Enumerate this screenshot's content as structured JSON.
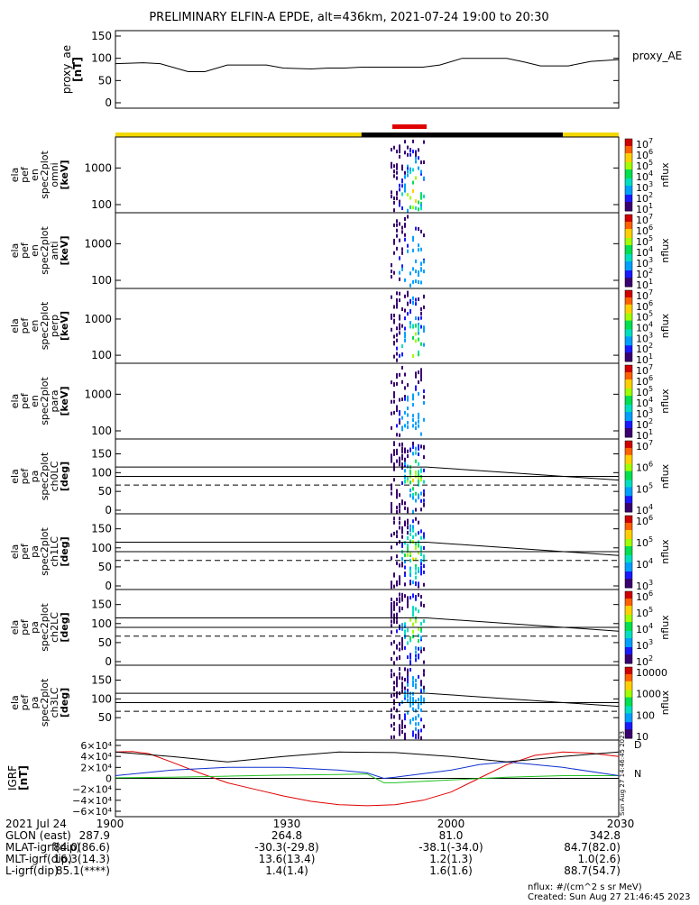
{
  "title": "PRELIMINARY ELFIN-A EPDE, alt=436km, 2021-07-24 19:00 to 20:30",
  "colors": {
    "yellow": "#f2d800",
    "black": "#000000",
    "red": "#e00000",
    "blue": "#1030d0",
    "green": "#20c020"
  },
  "chart_data": [
    {
      "type": "line",
      "panel": "proxy_ae",
      "ylabel_lines": [
        "proxy_ae",
        "[nT]"
      ],
      "legend": "proxy_AE",
      "y_ticks": [
        "150",
        "100",
        "50",
        "0"
      ],
      "ylim": [
        0,
        150
      ],
      "x_minutes": [
        0,
        5,
        8,
        13,
        16,
        20,
        27,
        30,
        35,
        38,
        41,
        44,
        46,
        50,
        55,
        58,
        62,
        66,
        70,
        73,
        76,
        81,
        85,
        90
      ],
      "values": [
        88,
        90,
        88,
        70,
        70,
        85,
        85,
        78,
        76,
        78,
        78,
        80,
        80,
        80,
        80,
        85,
        100,
        100,
        100,
        92,
        83,
        83,
        93,
        97
      ]
    },
    {
      "type": "heatmap",
      "panel": "omni",
      "ylabel_lines": [
        "ela",
        "pef",
        "en",
        "spec2plot",
        "omni",
        "[keV]"
      ],
      "y_ticks": [
        "1000",
        "100"
      ],
      "colorbar_ticks": [
        "10^7",
        "10^6",
        "10^5",
        "10^4",
        "10^3",
        "10^2",
        "10^1"
      ],
      "colorbar_label": "nflux"
    },
    {
      "type": "heatmap",
      "panel": "anti",
      "ylabel_lines": [
        "ela",
        "pef",
        "en",
        "spec2plot",
        "anti",
        "[keV]"
      ],
      "y_ticks": [
        "1000",
        "100"
      ],
      "colorbar_ticks": [
        "10^7",
        "10^6",
        "10^5",
        "10^4",
        "10^3",
        "10^2",
        "10^1"
      ],
      "colorbar_label": "nflux"
    },
    {
      "type": "heatmap",
      "panel": "perp",
      "ylabel_lines": [
        "ela",
        "pef",
        "en",
        "spec2plot",
        "perp",
        "[keV]"
      ],
      "y_ticks": [
        "1000",
        "100"
      ],
      "colorbar_ticks": [
        "10^7",
        "10^6",
        "10^5",
        "10^4",
        "10^3",
        "10^2",
        "10^1"
      ],
      "colorbar_label": "nflux"
    },
    {
      "type": "heatmap",
      "panel": "para",
      "ylabel_lines": [
        "ela",
        "pef",
        "en",
        "spec2plot",
        "para",
        "[keV]"
      ],
      "y_ticks": [
        "1000",
        "100"
      ],
      "colorbar_ticks": [
        "10^7",
        "10^6",
        "10^5",
        "10^4",
        "10^3",
        "10^2",
        "10^1"
      ],
      "colorbar_label": "nflux"
    },
    {
      "type": "heatmap",
      "panel": "ch0LC",
      "ylabel_lines": [
        "ela",
        "pef",
        "pa",
        "spec2plot",
        "ch0LC",
        "[deg]"
      ],
      "y_ticks": [
        "150",
        "100",
        "50",
        "0"
      ],
      "colorbar_ticks": [
        "10^7",
        "10^6",
        "10^5",
        "10^4"
      ],
      "colorbar_label": "nflux"
    },
    {
      "type": "heatmap",
      "panel": "ch1LC",
      "ylabel_lines": [
        "ela",
        "pef",
        "pa",
        "spec2plot",
        "ch1LC",
        "[deg]"
      ],
      "y_ticks": [
        "150",
        "100",
        "50",
        "0"
      ],
      "colorbar_ticks": [
        "10^6",
        "10^5",
        "10^4",
        "10^3"
      ],
      "colorbar_label": "nflux"
    },
    {
      "type": "heatmap",
      "panel": "ch2LC",
      "ylabel_lines": [
        "ela",
        "pef",
        "pa",
        "spec2plot",
        "ch2LC",
        "[deg]"
      ],
      "y_ticks": [
        "150",
        "100",
        "50",
        "0"
      ],
      "colorbar_ticks": [
        "10^6",
        "10^5",
        "10^4",
        "10^3",
        "10^2"
      ],
      "colorbar_label": "nflux"
    },
    {
      "type": "heatmap",
      "panel": "ch3LC",
      "ylabel_lines": [
        "ela",
        "pef",
        "pa",
        "spec2plot",
        "ch3LC",
        "[deg]"
      ],
      "y_ticks": [
        "150",
        "100",
        "50"
      ],
      "colorbar_ticks": [
        "10000",
        "1000",
        "100",
        "10"
      ],
      "colorbar_label": "nflux"
    },
    {
      "type": "line",
      "panel": "IGRF",
      "ylabel_lines": [
        "IGRF",
        "[nT]"
      ],
      "y_ticks": [
        "6×10⁴",
        "4×10⁴",
        "2×10⁴",
        "0",
        "−2×10⁴",
        "−4×10⁴",
        "−6×10⁴"
      ],
      "ylim": [
        -60000,
        60000
      ],
      "legend_labels": [
        "D",
        "N"
      ],
      "series": [
        {
          "name": "D",
          "color": "#e00000",
          "x_minutes": [
            0,
            3,
            6,
            10,
            15,
            20,
            25,
            30,
            35,
            40,
            45,
            50,
            55,
            60,
            65,
            70,
            75,
            80,
            85,
            90
          ],
          "values": [
            48000,
            49000,
            45000,
            30000,
            10000,
            -8000,
            -20000,
            -32000,
            -42000,
            -48000,
            -50000,
            -48000,
            -40000,
            -25000,
            0,
            25000,
            42000,
            48000,
            46000,
            40000
          ]
        },
        {
          "name": "N",
          "color": "#20c020",
          "x_minutes": [
            0,
            10,
            20,
            30,
            40,
            45,
            48,
            50,
            60,
            70,
            80,
            90
          ],
          "values": [
            1000,
            2000,
            4000,
            6000,
            7000,
            8000,
            -8000,
            -8000,
            -3000,
            2000,
            5000,
            5000
          ]
        },
        {
          "name": "",
          "color": "#1030d0",
          "x_minutes": [
            0,
            10,
            20,
            30,
            40,
            45,
            48,
            50,
            60,
            65,
            70,
            80,
            90
          ],
          "values": [
            5000,
            15000,
            20000,
            20000,
            15000,
            10000,
            0,
            2000,
            15000,
            25000,
            30000,
            20000,
            5000
          ]
        },
        {
          "name": "",
          "color": "#000000",
          "x_minutes": [
            0,
            10,
            20,
            30,
            40,
            50,
            60,
            70,
            80,
            90
          ],
          "values": [
            48000,
            40000,
            30000,
            40000,
            48000,
            47000,
            40000,
            30000,
            40000,
            48000
          ]
        }
      ]
    }
  ],
  "footer": {
    "row_labels": [
      "2021 Jul 24",
      "GLON (east)",
      "MLAT-igrf(dip)",
      "MLT-igrf(dip)",
      "L-igrf(dip)"
    ],
    "col0": [
      "1900",
      "287.9",
      "84.0(86.6)",
      "16.3(14.3)",
      "85.1(****)"
    ],
    "col1": [
      "1930",
      "264.8",
      "-30.3(-29.8)",
      "13.6(13.4)",
      "1.4(1.4)"
    ],
    "col2": [
      "2000",
      "81.0",
      "-38.1(-34.0)",
      "1.2(1.3)",
      "1.6(1.6)"
    ],
    "col3": [
      "2030",
      "342.8",
      "84.7(82.0)",
      "1.0(2.6)",
      "88.7(54.7)"
    ],
    "units_note": "nflux: #/(cm^2 s sr MeV)",
    "created": "Created: Sun Aug 27 21:46:45 2023",
    "side_stamp": "Sun Aug 27 14:46:45 2023"
  }
}
